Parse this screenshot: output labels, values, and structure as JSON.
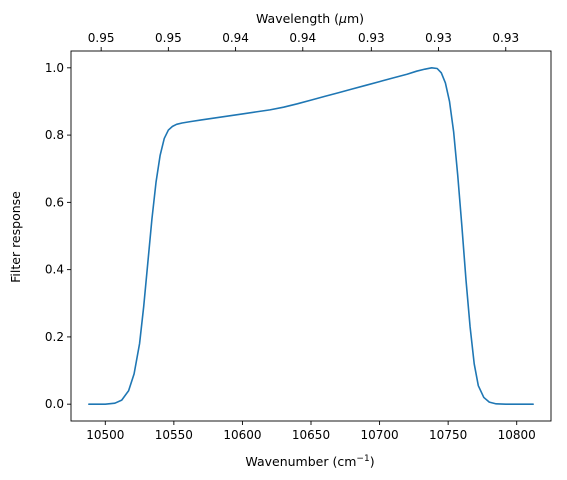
{
  "chart_data": {
    "type": "line",
    "xlabel": "Wavenumber (cm",
    "xlabel_superscript": "−1",
    "xlabel_suffix": ")",
    "x2label": "Wavelength (",
    "x2label_symbol": "μ",
    "x2label_suffix": "m)",
    "ylabel": "Filter response",
    "xlim": [
      10475,
      10825
    ],
    "ylim": [
      -0.05,
      1.05
    ],
    "x_ticks": [
      10500,
      10550,
      10600,
      10650,
      10700,
      10750,
      10800
    ],
    "x_tick_labels": [
      "10500",
      "10550",
      "10600",
      "10650",
      "10700",
      "10750",
      "10800"
    ],
    "y_ticks": [
      0.0,
      0.2,
      0.4,
      0.6,
      0.8,
      1.0
    ],
    "y_tick_labels": [
      "0.0",
      "0.2",
      "0.4",
      "0.6",
      "0.8",
      "1.0"
    ],
    "x2_ticks": [
      {
        "x": 10497,
        "label": "0.95"
      },
      {
        "x": 10546,
        "label": "0.95"
      },
      {
        "x": 10595,
        "label": "0.94"
      },
      {
        "x": 10644,
        "label": "0.94"
      },
      {
        "x": 10694,
        "label": "0.93"
      },
      {
        "x": 10743,
        "label": "0.93"
      },
      {
        "x": 10792,
        "label": "0.93"
      }
    ],
    "grid": false,
    "series": [
      {
        "color": "#1f77b4",
        "x": [
          10488,
          10500,
          10507,
          10512,
          10517,
          10521,
          10525,
          10528,
          10531,
          10534,
          10537,
          10540,
          10543,
          10546,
          10549,
          10552,
          10556,
          10562,
          10570,
          10580,
          10590,
          10600,
          10610,
          10620,
          10630,
          10640,
          10650,
          10660,
          10670,
          10680,
          10690,
          10700,
          10710,
          10720,
          10727,
          10733,
          10738,
          10742,
          10745,
          10748,
          10751,
          10754,
          10757,
          10760,
          10763,
          10766,
          10769,
          10772,
          10776,
          10780,
          10785,
          10792,
          10812
        ],
        "y": [
          0.0,
          0.0,
          0.003,
          0.012,
          0.04,
          0.09,
          0.18,
          0.29,
          0.42,
          0.55,
          0.66,
          0.74,
          0.79,
          0.815,
          0.826,
          0.832,
          0.836,
          0.84,
          0.845,
          0.851,
          0.857,
          0.863,
          0.869,
          0.875,
          0.883,
          0.893,
          0.904,
          0.915,
          0.926,
          0.937,
          0.948,
          0.959,
          0.97,
          0.981,
          0.99,
          0.996,
          1.0,
          0.998,
          0.985,
          0.955,
          0.9,
          0.81,
          0.68,
          0.53,
          0.37,
          0.23,
          0.12,
          0.055,
          0.02,
          0.006,
          0.001,
          0.0,
          0.0
        ]
      }
    ]
  }
}
